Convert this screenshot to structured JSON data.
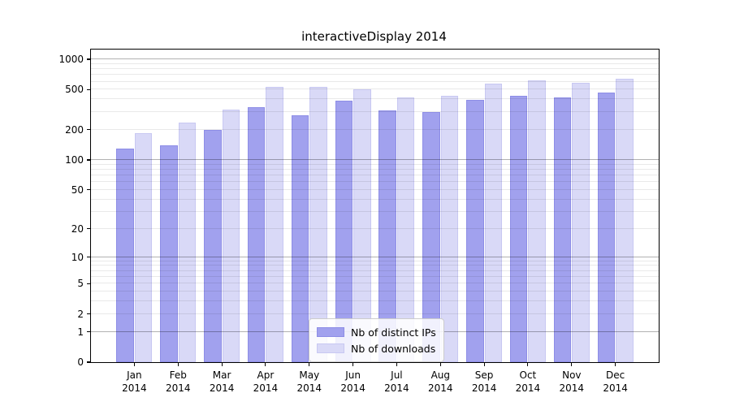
{
  "title": "interactiveDisplay 2014",
  "chart_data": {
    "type": "bar",
    "title": "interactiveDisplay 2014",
    "categories": [
      "Jan 2014",
      "Feb 2014",
      "Mar 2014",
      "Apr 2014",
      "May 2014",
      "Jun 2014",
      "Jul 2014",
      "Aug 2014",
      "Sep 2014",
      "Oct 2014",
      "Nov 2014",
      "Dec 2014"
    ],
    "series": [
      {
        "name": "Nb of distinct IPs",
        "color": "#a1a1ee",
        "edge_color": "#8d8de6",
        "values": [
          130,
          141,
          198,
          335,
          279,
          390,
          311,
          298,
          395,
          437,
          419,
          471
        ]
      },
      {
        "name": "Nb of downloads",
        "color": "#d9d9f7",
        "edge_color": "#c8c8f2",
        "values": [
          185,
          235,
          318,
          531,
          535,
          505,
          416,
          438,
          571,
          616,
          586,
          642
        ]
      }
    ],
    "xlabel": "",
    "ylabel": "",
    "yscale": "log(value+1)",
    "yticks": [
      0,
      1,
      2,
      5,
      10,
      20,
      50,
      100,
      200,
      500,
      1000
    ],
    "ylim": [
      0,
      1250
    ],
    "grid": "on",
    "grid_major_at": [
      1,
      10,
      100,
      1000
    ],
    "legend_position": "bottom-center"
  },
  "colors": {
    "background": "#ffffff",
    "axis": "#000000",
    "grid_major": "#b4b4b4",
    "grid_minor": "#e9e9e9",
    "legend_border": "#cccccc"
  }
}
